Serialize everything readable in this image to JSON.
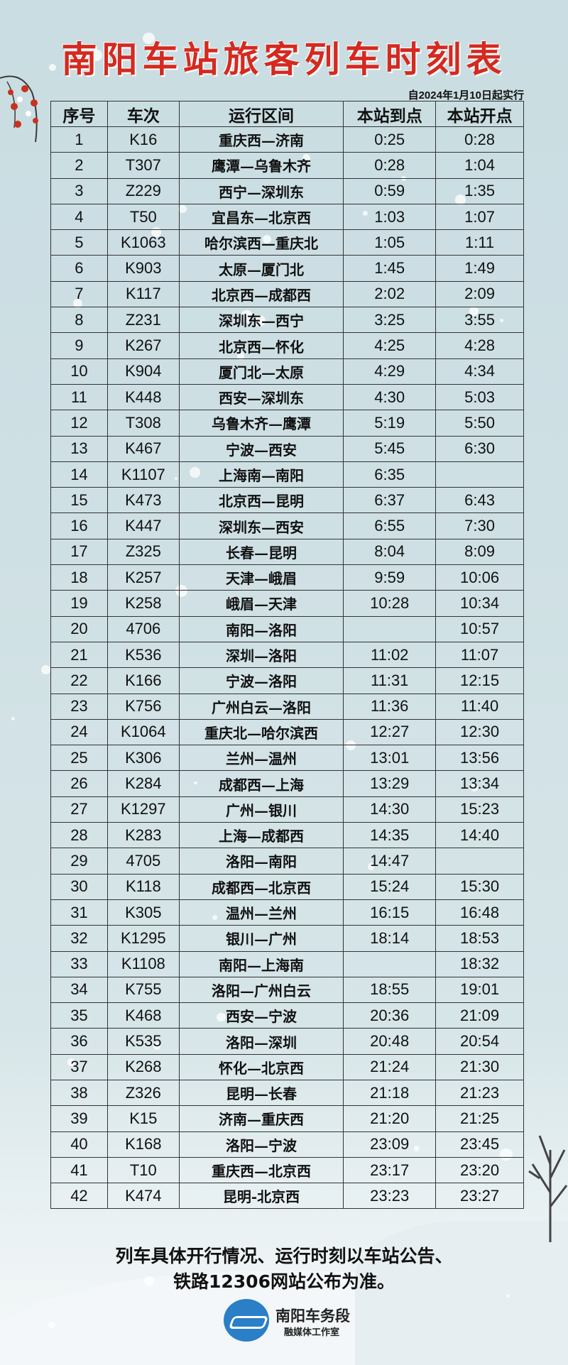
{
  "title": "南阳车站旅客列车时刻表",
  "effective_date": "自2024年1月10日起实行",
  "table": {
    "headers": [
      "序号",
      "车次",
      "运行区间",
      "本站到点",
      "本站开点"
    ],
    "rows": [
      [
        "1",
        "K16",
        "重庆西—济南",
        "0:25",
        "0:28"
      ],
      [
        "2",
        "T307",
        "鹰潭—乌鲁木齐",
        "0:28",
        "1:04"
      ],
      [
        "3",
        "Z229",
        "西宁—深圳东",
        "0:59",
        "1:35"
      ],
      [
        "4",
        "T50",
        "宜昌东—北京西",
        "1:03",
        "1:07"
      ],
      [
        "5",
        "K1063",
        "哈尔滨西—重庆北",
        "1:05",
        "1:11"
      ],
      [
        "6",
        "K903",
        "太原—厦门北",
        "1:45",
        "1:49"
      ],
      [
        "7",
        "K117",
        "北京西—成都西",
        "2:02",
        "2:09"
      ],
      [
        "8",
        "Z231",
        "深圳东—西宁",
        "3:25",
        "3:55"
      ],
      [
        "9",
        "K267",
        "北京西—怀化",
        "4:25",
        "4:28"
      ],
      [
        "10",
        "K904",
        "厦门北—太原",
        "4:29",
        "4:34"
      ],
      [
        "11",
        "K448",
        "西安—深圳东",
        "4:30",
        "5:03"
      ],
      [
        "12",
        "T308",
        "乌鲁木齐—鹰潭",
        "5:19",
        "5:50"
      ],
      [
        "13",
        "K467",
        "宁波—西安",
        "5:45",
        "6:30"
      ],
      [
        "14",
        "K1107",
        "上海南—南阳",
        "6:35",
        ""
      ],
      [
        "15",
        "K473",
        "北京西—昆明",
        "6:37",
        "6:43"
      ],
      [
        "16",
        "K447",
        "深圳东—西安",
        "6:55",
        "7:30"
      ],
      [
        "17",
        "Z325",
        "长春—昆明",
        "8:04",
        "8:09"
      ],
      [
        "18",
        "K257",
        "天津—峨眉",
        "9:59",
        "10:06"
      ],
      [
        "19",
        "K258",
        "峨眉—天津",
        "10:28",
        "10:34"
      ],
      [
        "20",
        "4706",
        "南阳—洛阳",
        "",
        "10:57"
      ],
      [
        "21",
        "K536",
        "深圳—洛阳",
        "11:02",
        "11:07"
      ],
      [
        "22",
        "K166",
        "宁波—洛阳",
        "11:31",
        "12:15"
      ],
      [
        "23",
        "K756",
        "广州白云—洛阳",
        "11:36",
        "11:40"
      ],
      [
        "24",
        "K1064",
        "重庆北—哈尔滨西",
        "12:27",
        "12:30"
      ],
      [
        "25",
        "K306",
        "兰州—温州",
        "13:01",
        "13:56"
      ],
      [
        "26",
        "K284",
        "成都西—上海",
        "13:29",
        "13:34"
      ],
      [
        "27",
        "K1297",
        "广州—银川",
        "14:30",
        "15:23"
      ],
      [
        "28",
        "K283",
        "上海—成都西",
        "14:35",
        "14:40"
      ],
      [
        "29",
        "4705",
        "洛阳—南阳",
        "14:47",
        ""
      ],
      [
        "30",
        "K118",
        "成都西—北京西",
        "15:24",
        "15:30"
      ],
      [
        "31",
        "K305",
        "温州—兰州",
        "16:15",
        "16:48"
      ],
      [
        "32",
        "K1295",
        "银川—广州",
        "18:14",
        "18:53"
      ],
      [
        "33",
        "K1108",
        "南阳—上海南",
        "",
        "18:32"
      ],
      [
        "34",
        "K755",
        "洛阳—广州白云",
        "18:55",
        "19:01"
      ],
      [
        "35",
        "K468",
        "西安—宁波",
        "20:36",
        "21:09"
      ],
      [
        "36",
        "K535",
        "洛阳—深圳",
        "20:48",
        "20:54"
      ],
      [
        "37",
        "K268",
        "怀化—北京西",
        "21:24",
        "21:30"
      ],
      [
        "38",
        "Z326",
        "昆明—长春",
        "21:18",
        "21:23"
      ],
      [
        "39",
        "K15",
        "济南—重庆西",
        "21:20",
        "21:25"
      ],
      [
        "40",
        "K168",
        "洛阳—宁波",
        "23:09",
        "23:45"
      ],
      [
        "41",
        "T10",
        "重庆西—北京西",
        "23:17",
        "23:20"
      ],
      [
        "42",
        "K474",
        "昆明-北京西",
        "23:23",
        "23:27"
      ]
    ]
  },
  "footer": {
    "line1": "列车具体开行情况、运行时刻以车站公告、",
    "line2": "铁路12306网站公布为准。"
  },
  "logo": {
    "org": "南阳车务段",
    "studio": "融媒体工作室",
    "icon": "railway-logo-icon"
  },
  "colors": {
    "title": "#d42a20",
    "background": "#cfe0e4",
    "logo": "#2a7fc6"
  }
}
